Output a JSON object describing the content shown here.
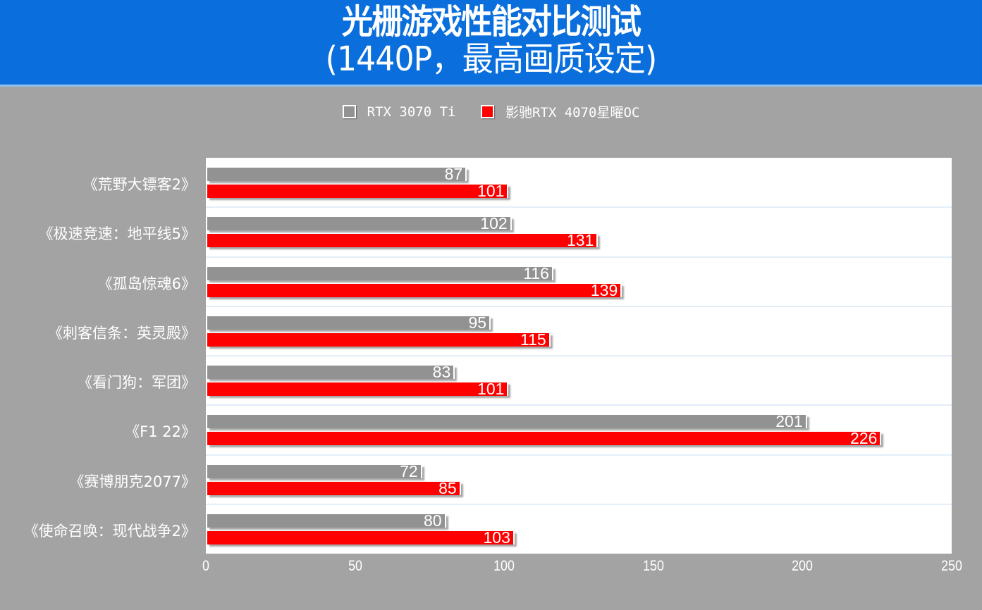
{
  "header": {
    "title": "光栅游戏性能对比测试",
    "subtitle": "(1440P，最高画质设定)"
  },
  "legend": [
    {
      "label": "RTX 3070 Ti",
      "color": "#929292"
    },
    {
      "label": "影驰RTX 4070星曜OC",
      "color": "#ff0000"
    }
  ],
  "axis": {
    "ticks": [
      "0",
      "50",
      "100",
      "150",
      "200",
      "250"
    ]
  },
  "chart_data": {
    "type": "bar",
    "orientation": "horizontal",
    "title": "光栅游戏性能对比测试",
    "subtitle": "(1440P，最高画质设定)",
    "xlabel": "",
    "ylabel": "",
    "xlim": [
      0,
      250
    ],
    "xticks": [
      0,
      50,
      100,
      150,
      200,
      250
    ],
    "grid": false,
    "legend_position": "top",
    "categories": [
      "《荒野大镖客2》",
      "《极速竞速：地平线5》",
      "《孤岛惊魂6》",
      "《刺客信条：英灵殿》",
      "《看门狗：军团》",
      "《F1 22》",
      "《赛博朋克2077》",
      "《使命召唤：现代战争2》"
    ],
    "series": [
      {
        "name": "RTX 3070 Ti",
        "color": "#929292",
        "values": [
          87,
          102,
          116,
          95,
          83,
          201,
          72,
          80
        ]
      },
      {
        "name": "影驰RTX 4070星曜OC",
        "color": "#ff0000",
        "values": [
          101,
          131,
          139,
          115,
          101,
          226,
          85,
          103
        ]
      }
    ]
  }
}
